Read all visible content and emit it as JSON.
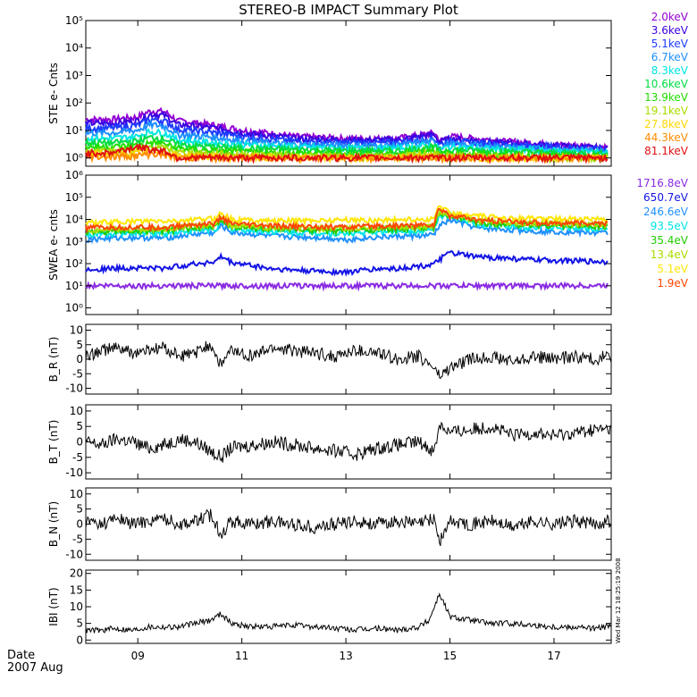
{
  "title": "STEREO-B IMPACT Summary Plot",
  "footer": {
    "date_label": "Date",
    "year_month": "2007 Aug"
  },
  "timestamp": "Wed Mar 12 18:25:19 2008",
  "x_axis": {
    "range": [
      8.0,
      18.1
    ],
    "ticks": [
      {
        "value": 9,
        "label": "09"
      },
      {
        "value": 11,
        "label": "11"
      },
      {
        "value": 13,
        "label": "13"
      },
      {
        "value": 15,
        "label": "15"
      },
      {
        "value": 17,
        "label": "17"
      }
    ]
  },
  "chart_data": [
    {
      "type": "line",
      "ylabel": "STE e- Cnts",
      "yscale": "log",
      "ylim": [
        0.5,
        100000
      ],
      "yticks": [
        {
          "value": 1,
          "label": "10⁰"
        },
        {
          "value": 10,
          "label": "10¹"
        },
        {
          "value": 100,
          "label": "10²"
        },
        {
          "value": 1000,
          "label": "10³"
        },
        {
          "value": 10000,
          "label": "10⁴"
        },
        {
          "value": 100000,
          "label": "10⁵"
        }
      ],
      "x": [
        8.0,
        8.5,
        9.0,
        9.25,
        9.5,
        9.75,
        10.0,
        10.5,
        11.0,
        12.0,
        13.0,
        14.0,
        14.7,
        14.8,
        15.0,
        16.0,
        17.0,
        18.0
      ],
      "series": [
        {
          "name": "2.0keV",
          "color": "#9400d3",
          "values": [
            25,
            25,
            30,
            50,
            48,
            22,
            20,
            15,
            10,
            6,
            5,
            5,
            8,
            4,
            6,
            4,
            3,
            2.5
          ]
        },
        {
          "name": "3.6keV",
          "color": "#3a00e0",
          "values": [
            18,
            18,
            22,
            38,
            35,
            16,
            15,
            12,
            8,
            5,
            4.5,
            4.5,
            7,
            3.5,
            5,
            3.5,
            2.8,
            2.2
          ]
        },
        {
          "name": "5.1keV",
          "color": "#1e3cff",
          "values": [
            12,
            12,
            15,
            25,
            22,
            11,
            10,
            8,
            6,
            4,
            3.5,
            3.5,
            5,
            3,
            4,
            3,
            2.5,
            2
          ]
        },
        {
          "name": "6.7keV",
          "color": "#1e90ff",
          "values": [
            8,
            8,
            10,
            16,
            14,
            7,
            6.5,
            5.5,
            4,
            3,
            2.8,
            2.8,
            4,
            2.5,
            3.2,
            2.5,
            2,
            1.8
          ]
        },
        {
          "name": "8.3keV",
          "color": "#00e5e5",
          "values": [
            5,
            5,
            6,
            9,
            8,
            4.5,
            4,
            3.5,
            3,
            2.5,
            2.2,
            2.2,
            3,
            2,
            2.5,
            2,
            1.8,
            1.6
          ]
        },
        {
          "name": "10.6keV",
          "color": "#00dd44",
          "values": [
            3.5,
            3.5,
            4,
            5.5,
            5,
            3,
            2.8,
            2.5,
            2.2,
            2,
            1.8,
            1.8,
            2.5,
            1.7,
            2,
            1.7,
            1.5,
            1.4
          ]
        },
        {
          "name": "13.9keV",
          "color": "#22dd00",
          "values": [
            2.5,
            2.5,
            2.8,
            3.5,
            3.2,
            2.2,
            2,
            1.8,
            1.6,
            1.5,
            1.4,
            1.4,
            2,
            1.3,
            1.5,
            1.3,
            1.2,
            1.1
          ]
        },
        {
          "name": "19.1keV",
          "color": "#aadd00",
          "values": [
            1.8,
            1.8,
            2,
            2.5,
            2.2,
            1.6,
            1.5,
            1.4,
            1.3,
            1.2,
            1.1,
            1.1,
            1.5,
            1.1,
            1.2,
            1.1,
            1,
            1
          ]
        },
        {
          "name": "27.8keV",
          "color": "#ffd700",
          "values": [
            1.4,
            1.4,
            1.5,
            1.8,
            1.6,
            1.2,
            1.2,
            1.1,
            1,
            1,
            1,
            1,
            1.2,
            1,
            1,
            1,
            1,
            1
          ]
        },
        {
          "name": "44.3keV",
          "color": "#ff8c00",
          "values": [
            1.1,
            1.1,
            1.2,
            1.4,
            1.3,
            1,
            1,
            1,
            1,
            1,
            1,
            1,
            1,
            1,
            1,
            1,
            1,
            1
          ]
        },
        {
          "name": "81.1keV",
          "color": "#e01010",
          "values": [
            1.5,
            1.5,
            2.5,
            2,
            1.8,
            1,
            1,
            1,
            1,
            1,
            1,
            1,
            1,
            1,
            1,
            1,
            1,
            1
          ]
        }
      ]
    },
    {
      "type": "line",
      "ylabel": "SWEA e- cnts",
      "yscale": "log",
      "ylim": [
        0.5,
        1000000
      ],
      "yticks": [
        {
          "value": 1,
          "label": "10⁰"
        },
        {
          "value": 10,
          "label": "10¹"
        },
        {
          "value": 100,
          "label": "10²"
        },
        {
          "value": 1000,
          "label": "10³"
        },
        {
          "value": 10000,
          "label": "10⁴"
        },
        {
          "value": 100000,
          "label": "10⁵"
        },
        {
          "value": 1000000,
          "label": "10⁶"
        }
      ],
      "x": [
        8.0,
        8.5,
        9.0,
        9.5,
        10.0,
        10.5,
        10.6,
        10.8,
        11.5,
        12.0,
        12.5,
        13.0,
        13.5,
        14.0,
        14.5,
        14.7,
        14.8,
        15.0,
        15.5,
        16.0,
        16.5,
        17.0,
        17.5,
        18.0
      ],
      "series": [
        {
          "name": "1716.8eV",
          "color": "#8a2be2",
          "values": [
            10,
            10,
            10,
            10,
            10,
            10,
            10,
            10,
            10,
            10,
            10,
            10,
            10,
            10,
            10,
            10,
            10,
            10,
            10,
            10,
            10,
            10,
            10,
            10
          ]
        },
        {
          "name": "650.7eV",
          "color": "#1414e6",
          "values": [
            55,
            60,
            65,
            60,
            90,
            120,
            200,
            110,
            60,
            50,
            45,
            40,
            55,
            60,
            80,
            90,
            150,
            300,
            200,
            180,
            150,
            140,
            130,
            120
          ]
        },
        {
          "name": "246.6eV",
          "color": "#1e90ff",
          "values": [
            1200,
            1400,
            1500,
            1400,
            2000,
            2500,
            5000,
            2500,
            1800,
            1600,
            1500,
            1200,
            1500,
            1700,
            1800,
            2000,
            5000,
            9000,
            4000,
            3500,
            3000,
            2800,
            2600,
            2400
          ]
        },
        {
          "name": "93.5eV",
          "color": "#00e5e5",
          "values": [
            2000,
            2200,
            2400,
            2300,
            3000,
            3500,
            7000,
            3500,
            2800,
            2500,
            2400,
            2200,
            2600,
            2900,
            3000,
            3200,
            15000,
            12000,
            6000,
            5000,
            4500,
            4200,
            4000,
            3800
          ]
        },
        {
          "name": "35.4eV",
          "color": "#22cc00",
          "values": [
            2600,
            2800,
            3000,
            3000,
            4000,
            4500,
            9000,
            4500,
            3500,
            3300,
            3100,
            3000,
            3400,
            3700,
            3900,
            4000,
            18000,
            14000,
            7000,
            6000,
            5500,
            5200,
            5000,
            4800
          ]
        },
        {
          "name": "13.4eV",
          "color": "#aadd00",
          "values": [
            3200,
            3400,
            3600,
            3500,
            4800,
            5500,
            11000,
            5400,
            4200,
            4000,
            3800,
            3700,
            4100,
            4500,
            4700,
            4900,
            22000,
            17000,
            8500,
            7500,
            6800,
            6400,
            6200,
            6000
          ]
        },
        {
          "name": "5.1eV",
          "color": "#ffe600",
          "values": [
            7000,
            7500,
            8000,
            8000,
            9000,
            11000,
            20000,
            10000,
            8500,
            8500,
            9000,
            9500,
            9000,
            9500,
            9800,
            10000,
            40000,
            18000,
            14000,
            12000,
            11000,
            10500,
            10200,
            10000
          ]
        },
        {
          "name": "1.9eV",
          "color": "#ff4500",
          "values": [
            4000,
            4200,
            4400,
            4200,
            5500,
            6500,
            12000,
            6000,
            5000,
            4800,
            4600,
            4400,
            4800,
            5200,
            5400,
            5600,
            28000,
            15000,
            9000,
            8000,
            7200,
            6800,
            6600,
            6400
          ]
        }
      ]
    },
    {
      "type": "line",
      "ylabel": "B_R (nT)",
      "ylim": [
        -12,
        12
      ],
      "yticks": [
        {
          "value": -10,
          "label": "-10"
        },
        {
          "value": -5,
          "label": "-5"
        },
        {
          "value": 0,
          "label": "0"
        },
        {
          "value": 5,
          "label": "5"
        },
        {
          "value": 10,
          "label": "10"
        }
      ],
      "x": [
        8.0,
        8.3,
        8.6,
        8.9,
        9.2,
        9.5,
        9.8,
        10.1,
        10.4,
        10.6,
        10.8,
        11.2,
        11.6,
        12.0,
        12.4,
        12.8,
        13.2,
        13.6,
        14.0,
        14.4,
        14.7,
        14.8,
        15.0,
        15.4,
        15.8,
        16.2,
        16.6,
        17.0,
        17.4,
        17.8,
        18.0
      ],
      "values": [
        1,
        3,
        4,
        2,
        3,
        4,
        1,
        2,
        5,
        -2,
        3,
        1,
        4,
        3,
        2,
        1,
        3,
        2,
        0,
        1,
        -3,
        -6,
        -3,
        0,
        1,
        -1,
        1,
        0,
        1,
        0,
        1
      ]
    },
    {
      "type": "line",
      "ylabel": "B_T (nT)",
      "ylim": [
        -12,
        12
      ],
      "yticks": [
        {
          "value": -10,
          "label": "-10"
        },
        {
          "value": -5,
          "label": "-5"
        },
        {
          "value": 0,
          "label": "0"
        },
        {
          "value": 5,
          "label": "5"
        },
        {
          "value": 10,
          "label": "10"
        }
      ],
      "x": [
        8.0,
        8.3,
        8.6,
        8.9,
        9.2,
        9.5,
        9.8,
        10.1,
        10.4,
        10.6,
        10.8,
        11.2,
        11.6,
        12.0,
        12.4,
        12.8,
        13.2,
        13.6,
        14.0,
        14.4,
        14.7,
        14.8,
        15.0,
        15.4,
        15.8,
        16.2,
        16.6,
        17.0,
        17.4,
        17.8,
        18.0
      ],
      "values": [
        0,
        -1,
        1,
        0,
        -2,
        -1,
        1,
        0,
        -3,
        -5,
        -2,
        -1,
        0,
        -1,
        -2,
        -3,
        -4,
        -2,
        -1,
        0,
        -3,
        6,
        3,
        4,
        5,
        2,
        3,
        2,
        3,
        4,
        4
      ]
    },
    {
      "type": "line",
      "ylabel": "B_N (nT)",
      "ylim": [
        -12,
        12
      ],
      "yticks": [
        {
          "value": -10,
          "label": "-10"
        },
        {
          "value": -5,
          "label": "-5"
        },
        {
          "value": 0,
          "label": "0"
        },
        {
          "value": 5,
          "label": "5"
        },
        {
          "value": 10,
          "label": "10"
        }
      ],
      "x": [
        8.0,
        8.3,
        8.6,
        8.9,
        9.2,
        9.5,
        9.8,
        10.1,
        10.4,
        10.6,
        10.8,
        11.2,
        11.6,
        12.0,
        12.4,
        12.8,
        13.2,
        13.6,
        14.0,
        14.4,
        14.7,
        14.8,
        15.0,
        15.4,
        15.8,
        16.2,
        16.6,
        17.0,
        17.4,
        17.8,
        18.0
      ],
      "values": [
        1,
        0,
        2,
        0,
        1,
        2,
        0,
        1,
        3,
        -3,
        1,
        0,
        1,
        0,
        -1,
        0,
        1,
        0,
        1,
        0,
        2,
        -6,
        1,
        0,
        1,
        -1,
        1,
        0,
        1,
        0,
        1
      ]
    },
    {
      "type": "line",
      "ylabel": "IBI (nT)",
      "ylim": [
        -1,
        21
      ],
      "yticks": [
        {
          "value": 0,
          "label": "0"
        },
        {
          "value": 5,
          "label": "5"
        },
        {
          "value": 10,
          "label": "10"
        },
        {
          "value": 15,
          "label": "15"
        },
        {
          "value": 20,
          "label": "20"
        }
      ],
      "x": [
        8.0,
        8.3,
        8.6,
        8.9,
        9.2,
        9.5,
        9.8,
        10.1,
        10.4,
        10.6,
        10.8,
        11.2,
        11.6,
        12.0,
        12.4,
        12.8,
        13.2,
        13.6,
        14.0,
        14.4,
        14.6,
        14.8,
        15.0,
        15.4,
        15.8,
        16.2,
        16.6,
        17.0,
        17.4,
        17.8,
        18.0
      ],
      "values": [
        3,
        3,
        3.5,
        3,
        4,
        4,
        4,
        5,
        6,
        8,
        5,
        4,
        4,
        4.5,
        4,
        3.5,
        3,
        3.5,
        3,
        4,
        6,
        14,
        7,
        6,
        5,
        5,
        4.5,
        4,
        4,
        3.5,
        4
      ]
    }
  ]
}
